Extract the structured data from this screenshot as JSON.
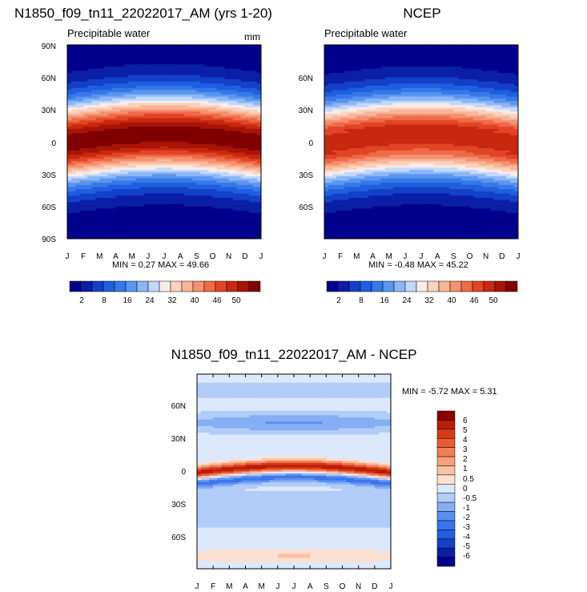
{
  "colors": {
    "abs_scale": [
      "#00008c",
      "#0a1ea6",
      "#1440c8",
      "#1f5fe0",
      "#3778ea",
      "#5a96f0",
      "#8cb6f5",
      "#c2d8fa",
      "#f6ecea",
      "#fbd2bc",
      "#f8b496",
      "#f59070",
      "#ef6a48",
      "#e24426",
      "#c8280f",
      "#a81408",
      "#800000"
    ],
    "diff_scale": [
      "#00008c",
      "#0a1ea6",
      "#1440c8",
      "#1f5fe0",
      "#3a74ea",
      "#5a8ef0",
      "#86aef5",
      "#b2ccf8",
      "#dce8fc",
      "#fce0d0",
      "#f9c2a6",
      "#f6a07c",
      "#f27e56",
      "#ea5a32",
      "#d83a18",
      "#b81e08",
      "#8c0000"
    ]
  },
  "plots": [
    {
      "id": "model",
      "title": "N1850_f09_tn11_22022017_AM (yrs 1-20)",
      "subtitle": "Precipitable water",
      "units": "mm",
      "stats": "MIN =   0.27 MAX =  49.66",
      "lat_labels": [
        "90N",
        "60N",
        "30N",
        "0",
        "30S",
        "60S",
        "90S"
      ],
      "month_labels": [
        "J",
        "F",
        "M",
        "A",
        "M",
        "J",
        "J",
        "A",
        "S",
        "O",
        "N",
        "D",
        "J"
      ],
      "colorbar_labels": [
        "2",
        "8",
        "16",
        "24",
        "32",
        "40",
        "46",
        "50"
      ]
    },
    {
      "id": "obs",
      "title": "NCEP",
      "subtitle": "Precipitable water",
      "units": "",
      "stats": "MIN =  -0.48 MAX =  45.22",
      "lat_labels": [
        "60N",
        "30N",
        "0",
        "30S",
        "60S"
      ],
      "month_labels": [
        "J",
        "F",
        "M",
        "A",
        "M",
        "J",
        "J",
        "A",
        "S",
        "O",
        "N",
        "D",
        "J"
      ],
      "colorbar_labels": [
        "2",
        "8",
        "16",
        "24",
        "32",
        "40",
        "46",
        "50"
      ]
    },
    {
      "id": "diff",
      "title": "N1850_f09_tn11_22022017_AM - NCEP",
      "stats": "MIN =  -5.72 MAX =   5.31",
      "lat_labels": [
        "60N",
        "30N",
        "0",
        "30S",
        "60S"
      ],
      "month_labels": [
        "J",
        "F",
        "M",
        "A",
        "M",
        "J",
        "J",
        "A",
        "S",
        "O",
        "N",
        "D",
        "J"
      ],
      "colorbar_labels": [
        "6",
        "5",
        "4",
        "3",
        "2",
        "1",
        "0.5",
        "0",
        "-0.5",
        "-1",
        "-2",
        "-3",
        "-4",
        "-5",
        "-6"
      ]
    }
  ],
  "chart_data": [
    {
      "type": "heatmap",
      "title": "N1850_f09_tn11_22022017_AM (yrs 1-20)",
      "variable": "Precipitable water",
      "units": "mm",
      "x": "month (Jan..Jan)",
      "y": "latitude",
      "ylim": [
        -90,
        90
      ],
      "min": 0.27,
      "max": 49.66,
      "levels": [
        2,
        5,
        8,
        12,
        16,
        20,
        24,
        28,
        32,
        36,
        40,
        43,
        46,
        48,
        50,
        52
      ],
      "max_band_center_lat_by_month": {
        "Jan": 0,
        "Apr": 3,
        "Jul": 8,
        "Aug": 9,
        "Oct": 4
      }
    },
    {
      "type": "heatmap",
      "title": "NCEP",
      "variable": "Precipitable water",
      "ylim": [
        -90,
        90
      ],
      "min": -0.48,
      "max": 45.22,
      "levels": [
        2,
        5,
        8,
        12,
        16,
        20,
        24,
        28,
        32,
        36,
        40,
        43,
        46,
        48,
        50,
        52
      ]
    },
    {
      "type": "heatmap",
      "title": "N1850_f09_tn11_22022017_AM - NCEP",
      "ylim": [
        -90,
        90
      ],
      "min": -5.72,
      "max": 5.31,
      "levels": [
        -6,
        -5,
        -4,
        -3,
        -2,
        -1,
        -0.5,
        0,
        0.5,
        1,
        2,
        3,
        4,
        5,
        6
      ]
    }
  ]
}
